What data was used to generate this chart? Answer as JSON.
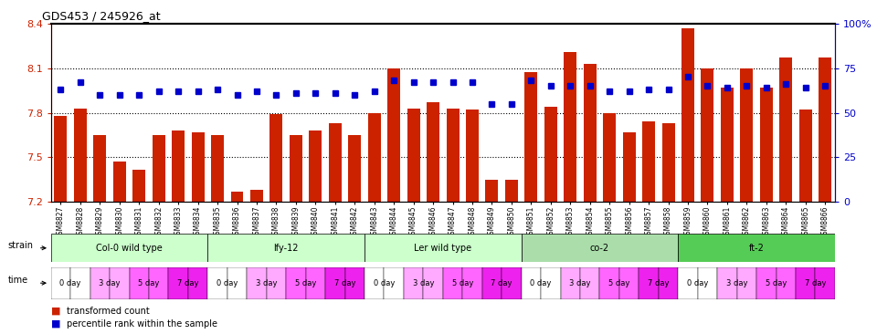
{
  "title": "GDS453 / 245926_at",
  "samples": [
    "GSM8827",
    "GSM8828",
    "GSM8829",
    "GSM8830",
    "GSM8831",
    "GSM8832",
    "GSM8833",
    "GSM8834",
    "GSM8835",
    "GSM8836",
    "GSM8837",
    "GSM8838",
    "GSM8839",
    "GSM8840",
    "GSM8841",
    "GSM8842",
    "GSM8843",
    "GSM8844",
    "GSM8845",
    "GSM8846",
    "GSM8847",
    "GSM8848",
    "GSM8849",
    "GSM8850",
    "GSM8851",
    "GSM8852",
    "GSM8853",
    "GSM8854",
    "GSM8855",
    "GSM8856",
    "GSM8857",
    "GSM8858",
    "GSM8859",
    "GSM8860",
    "GSM8861",
    "GSM8862",
    "GSM8863",
    "GSM8864",
    "GSM8865",
    "GSM8866"
  ],
  "bar_values": [
    7.78,
    7.83,
    7.65,
    7.47,
    7.42,
    7.65,
    7.68,
    7.67,
    7.65,
    7.27,
    7.28,
    7.79,
    7.65,
    7.68,
    7.73,
    7.65,
    7.8,
    8.1,
    7.83,
    7.87,
    7.83,
    7.82,
    7.35,
    7.35,
    8.07,
    7.84,
    8.21,
    8.13,
    7.8,
    7.67,
    7.74,
    7.73,
    8.37,
    8.1,
    7.97,
    8.1,
    7.97,
    8.17,
    7.82,
    8.17
  ],
  "percentile_values": [
    63,
    67,
    60,
    60,
    60,
    62,
    62,
    62,
    63,
    60,
    62,
    60,
    61,
    61,
    61,
    60,
    62,
    68,
    67,
    67,
    67,
    67,
    55,
    55,
    68,
    65,
    65,
    65,
    62,
    62,
    63,
    63,
    70,
    65,
    64,
    65,
    64,
    66,
    64,
    65
  ],
  "ylim_left": [
    7.2,
    8.4
  ],
  "ylim_right": [
    0,
    100
  ],
  "yticks_left": [
    7.2,
    7.5,
    7.8,
    8.1,
    8.4
  ],
  "yticks_right": [
    0,
    25,
    50,
    75,
    100
  ],
  "hlines": [
    7.5,
    7.8,
    8.1
  ],
  "strains": [
    {
      "label": "Col-0 wild type",
      "start": 0,
      "end": 8
    },
    {
      "label": "lfy-12",
      "start": 8,
      "end": 16
    },
    {
      "label": "Ler wild type",
      "start": 16,
      "end": 24
    },
    {
      "label": "co-2",
      "start": 24,
      "end": 32
    },
    {
      "label": "ft-2",
      "start": 32,
      "end": 40
    }
  ],
  "strain_colors": [
    "#ccffcc",
    "#ccffcc",
    "#ccffcc",
    "#aaddaa",
    "#55cc55"
  ],
  "time_labels": [
    "0 day",
    "3 day",
    "5 day",
    "7 day"
  ],
  "time_colors": [
    "#ffffff",
    "#ffaaff",
    "#ff66ff",
    "#ee22ee"
  ],
  "bar_color": "#cc2200",
  "blue_color": "#0000cc",
  "left_axis_color": "#cc2200",
  "right_axis_color": "#0000cc"
}
